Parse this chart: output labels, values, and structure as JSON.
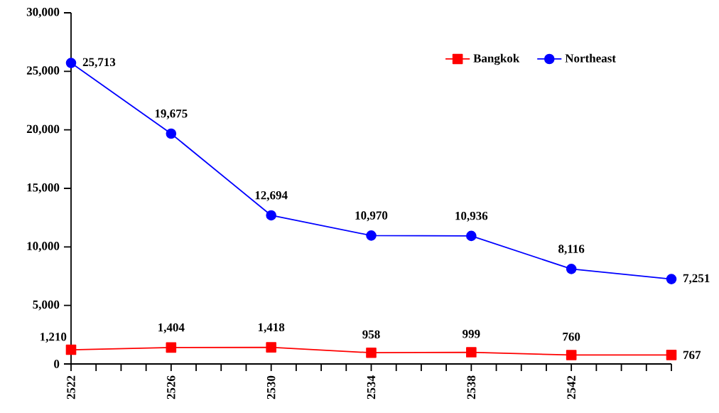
{
  "chart_data": {
    "type": "line",
    "x": [
      2522,
      2526,
      2530,
      2534,
      2538,
      2542,
      2546
    ],
    "series": [
      {
        "name": "Bangkok",
        "color": "#ff0000",
        "marker": "square",
        "values": [
          1210,
          1404,
          1418,
          958,
          999,
          760,
          767
        ],
        "value_labels": [
          "1,210",
          "1,404",
          "1,418",
          "958",
          "999",
          "760",
          "767"
        ]
      },
      {
        "name": "Northeast",
        "color": "#0000ff",
        "marker": "circle",
        "values": [
          25713,
          19675,
          12694,
          10970,
          10936,
          8116,
          7251
        ],
        "value_labels": [
          "25,713",
          "19,675",
          "12,694",
          "10,970",
          "10,936",
          "8,116",
          "7,251"
        ]
      }
    ],
    "xlim": [
      2522,
      2546
    ],
    "xticks": [
      2522,
      {
        "value": 2523,
        "label": null
      },
      {
        "value": 2524,
        "label": null
      },
      {
        "value": 2525,
        "label": null
      },
      2526,
      {
        "value": 2527,
        "label": null
      },
      {
        "value": 2528,
        "label": null
      },
      {
        "value": 2529,
        "label": null
      },
      2530,
      {
        "value": 2531,
        "label": null
      },
      {
        "value": 2532,
        "label": null
      },
      {
        "value": 2533,
        "label": null
      },
      2534,
      {
        "value": 2535,
        "label": null
      },
      {
        "value": 2536,
        "label": null
      },
      {
        "value": 2537,
        "label": null
      },
      2538,
      {
        "value": 2539,
        "label": null
      },
      {
        "value": 2540,
        "label": null
      },
      {
        "value": 2541,
        "label": null
      },
      2542,
      {
        "value": 2543,
        "label": null
      },
      {
        "value": 2544,
        "label": null
      },
      {
        "value": 2545,
        "label": null
      },
      {
        "value": 2546,
        "label": null
      }
    ],
    "ylim": [
      0,
      30000
    ],
    "yticks": [
      0,
      {
        "value": 5000,
        "label": "5,000"
      },
      {
        "value": 10000,
        "label": "10,000"
      },
      {
        "value": 15000,
        "label": "15,000"
      },
      {
        "value": 20000,
        "label": "20,000"
      },
      {
        "value": 25000,
        "label": "25,000"
      },
      {
        "value": 30000,
        "label": "30,000"
      }
    ],
    "legend": "top right",
    "grid": false,
    "line_style": "solid"
  }
}
